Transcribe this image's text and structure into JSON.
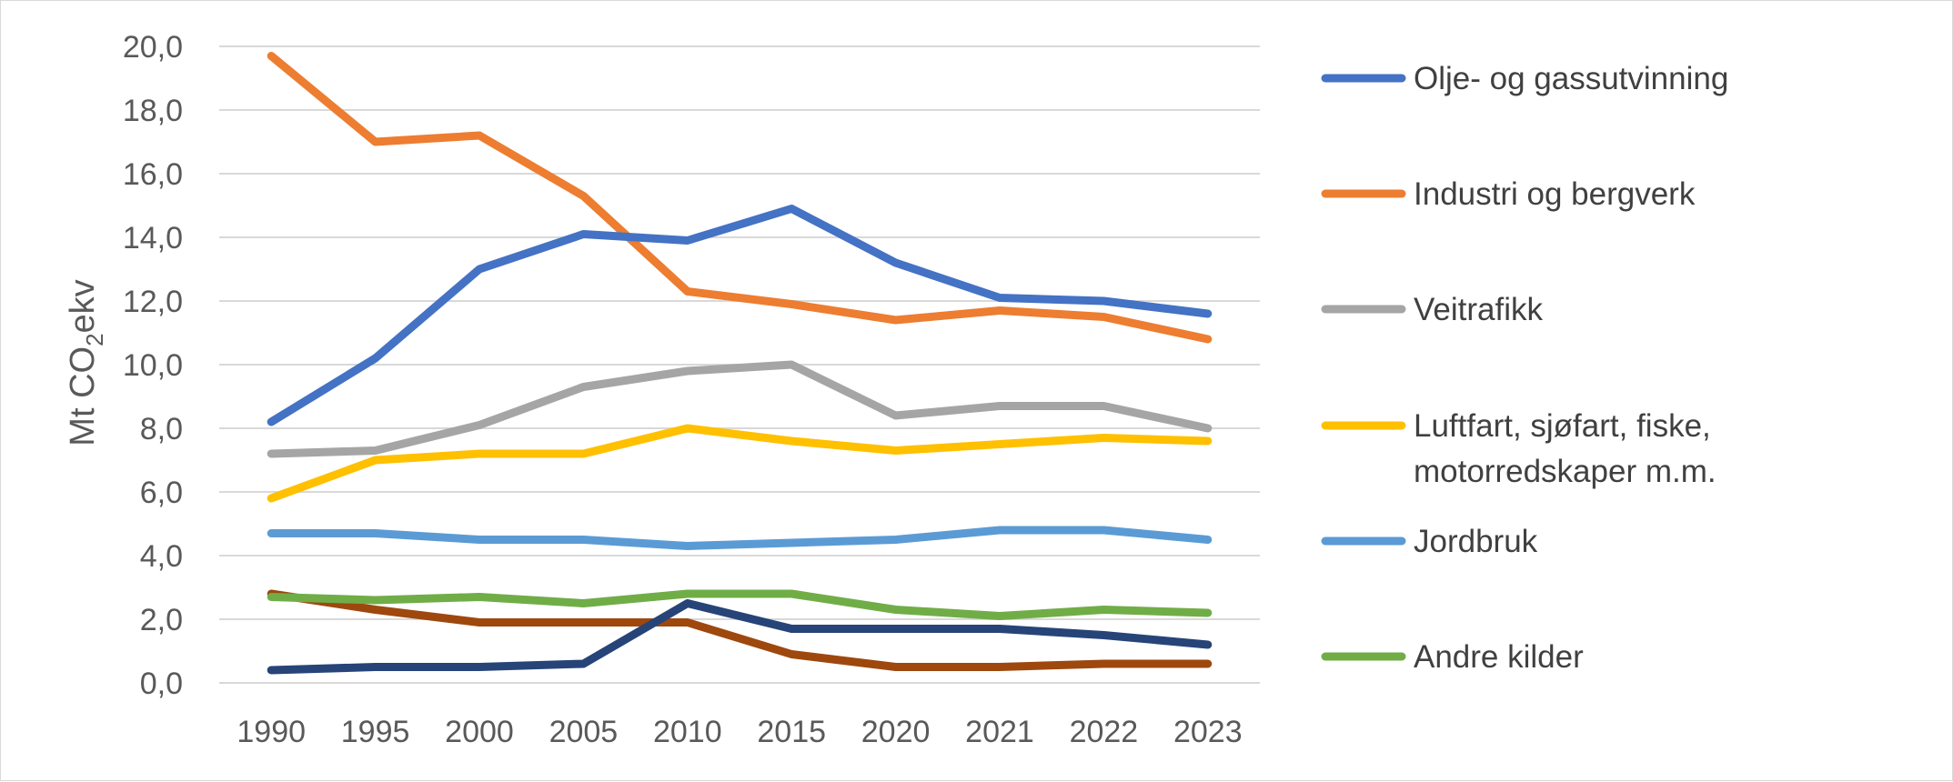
{
  "chart_data": {
    "type": "line",
    "ylabel": {
      "prefix": "Mt CO",
      "subscript": "2",
      "suffix": "ekv"
    },
    "categories": [
      "1990",
      "1995",
      "2000",
      "2005",
      "2010",
      "2015",
      "2020",
      "2021",
      "2022",
      "2023"
    ],
    "ylim": [
      0,
      20
    ],
    "yticks": [
      "0,0",
      "2,0",
      "4,0",
      "6,0",
      "8,0",
      "10,0",
      "12,0",
      "14,0",
      "16,0",
      "18,0",
      "20,0"
    ],
    "grid": true,
    "legend_position": "right",
    "series": [
      {
        "name": "Olje- og gassutvinning",
        "color": "#4472C4",
        "values": [
          8.2,
          10.2,
          13.0,
          14.1,
          13.9,
          14.9,
          13.2,
          12.1,
          12.0,
          11.6
        ]
      },
      {
        "name": "Industri og bergverk",
        "color": "#ED7D31",
        "values": [
          19.7,
          17.0,
          17.2,
          15.3,
          12.3,
          11.9,
          11.4,
          11.7,
          11.5,
          10.8
        ]
      },
      {
        "name": "Veitrafikk",
        "color": "#A5A5A5",
        "values": [
          7.2,
          7.3,
          8.1,
          9.3,
          9.8,
          10.0,
          8.4,
          8.7,
          8.7,
          8.0
        ]
      },
      {
        "name": "Luftfart, sjøfart, fiske, motorredskaper m.m.",
        "name_lines": [
          "Luftfart, sjøfart, fiske,",
          "motorredskaper m.m."
        ],
        "color": "#FFC000",
        "values": [
          5.8,
          7.0,
          7.2,
          7.2,
          8.0,
          7.6,
          7.3,
          7.5,
          7.7,
          7.6
        ]
      },
      {
        "name": "Jordbruk",
        "color": "#5B9BD5",
        "values": [
          4.7,
          4.7,
          4.5,
          4.5,
          4.3,
          4.4,
          4.5,
          4.8,
          4.8,
          4.5
        ]
      },
      {
        "name": "Andre kilder",
        "color": "#70AD47",
        "values": [
          2.7,
          2.6,
          2.7,
          2.5,
          2.8,
          2.8,
          2.3,
          2.1,
          2.3,
          2.2
        ]
      },
      {
        "color": "#264478",
        "values": [
          0.4,
          0.5,
          0.5,
          0.6,
          2.5,
          1.7,
          1.7,
          1.7,
          1.5,
          1.2
        ]
      },
      {
        "color": "#9E480E",
        "values": [
          2.8,
          2.3,
          1.9,
          1.9,
          1.9,
          0.9,
          0.5,
          0.5,
          0.6,
          0.6
        ]
      }
    ]
  }
}
